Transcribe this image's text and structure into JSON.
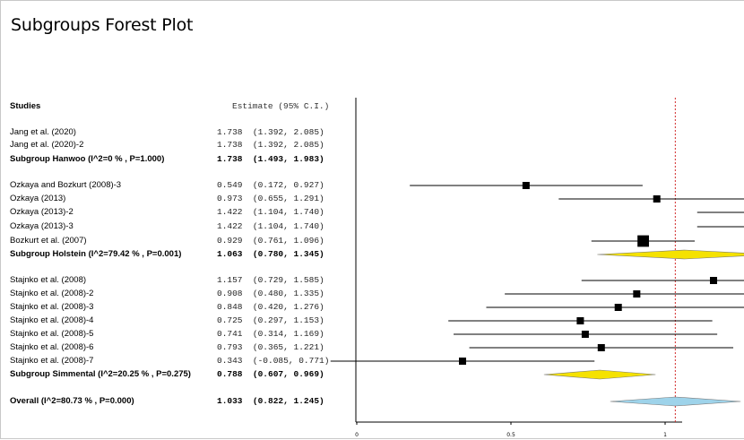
{
  "title": "Subgroups Forest Plot",
  "table_header": {
    "studies": "Studies",
    "estimate": "Estimate (95% C.I.)"
  },
  "rows": [
    {
      "label": "Jang et al. (2020)",
      "estimate_text": "1.738  (1.392, 2.085)",
      "est": 1.738,
      "lo": 1.392,
      "hi": 2.085,
      "kind": "study",
      "weight": 1
    },
    {
      "label": "Jang et al. (2020)-2",
      "estimate_text": "1.738  (1.392, 2.085)",
      "est": 1.738,
      "lo": 1.392,
      "hi": 2.085,
      "kind": "study",
      "weight": 1
    },
    {
      "label": "Subgroup Hanwoo (I^2=0 % , P=1.000)",
      "estimate_text": "1.738  (1.493, 1.983)",
      "est": 1.738,
      "lo": 1.493,
      "hi": 1.983,
      "kind": "subgroup"
    },
    {
      "label": "Ozkaya and Bozkurt (2008)-3",
      "estimate_text": "0.549  (0.172, 0.927)",
      "est": 0.549,
      "lo": 0.172,
      "hi": 0.927,
      "kind": "study",
      "weight": 1
    },
    {
      "label": "Ozkaya (2013)",
      "estimate_text": "0.973  (0.655, 1.291)",
      "est": 0.973,
      "lo": 0.655,
      "hi": 1.291,
      "kind": "study",
      "weight": 1
    },
    {
      "label": "Ozkaya (2013)-2",
      "estimate_text": "1.422  (1.104, 1.740)",
      "est": 1.422,
      "lo": 1.104,
      "hi": 1.74,
      "kind": "study",
      "weight": 1
    },
    {
      "label": "Ozkaya (2013)-3",
      "estimate_text": "1.422  (1.104, 1.740)",
      "est": 1.422,
      "lo": 1.104,
      "hi": 1.74,
      "kind": "study",
      "weight": 1
    },
    {
      "label": "Bozkurt et al. (2007)",
      "estimate_text": "0.929  (0.761, 1.096)",
      "est": 0.929,
      "lo": 0.761,
      "hi": 1.096,
      "kind": "study",
      "weight": 1.6
    },
    {
      "label": "Subgroup Holstein (I^2=79.42 % , P=0.001)",
      "estimate_text": "1.063  (0.780, 1.345)",
      "est": 1.063,
      "lo": 0.78,
      "hi": 1.345,
      "kind": "subgroup"
    },
    {
      "label": "Stajnko et al. (2008)",
      "estimate_text": "1.157  (0.729, 1.585)",
      "est": 1.157,
      "lo": 0.729,
      "hi": 1.585,
      "kind": "study",
      "weight": 1
    },
    {
      "label": "Stajnko et al. (2008)-2",
      "estimate_text": "0.908  (0.480, 1.335)",
      "est": 0.908,
      "lo": 0.48,
      "hi": 1.335,
      "kind": "study",
      "weight": 1
    },
    {
      "label": "Stajnko et al. (2008)-3",
      "estimate_text": "0.848  (0.420, 1.276)",
      "est": 0.848,
      "lo": 0.42,
      "hi": 1.276,
      "kind": "study",
      "weight": 1
    },
    {
      "label": "Stajnko et al. (2008)-4",
      "estimate_text": "0.725  (0.297, 1.153)",
      "est": 0.725,
      "lo": 0.297,
      "hi": 1.153,
      "kind": "study",
      "weight": 1
    },
    {
      "label": "Stajnko et al. (2008)-5",
      "estimate_text": "0.741  (0.314, 1.169)",
      "est": 0.741,
      "lo": 0.314,
      "hi": 1.169,
      "kind": "study",
      "weight": 1
    },
    {
      "label": "Stajnko et al. (2008)-6",
      "estimate_text": "0.793  (0.365, 1.221)",
      "est": 0.793,
      "lo": 0.365,
      "hi": 1.221,
      "kind": "study",
      "weight": 1
    },
    {
      "label": "Stajnko et al. (2008)-7",
      "estimate_text": "0.343  (-0.085, 0.771)",
      "est": 0.343,
      "lo": -0.085,
      "hi": 0.771,
      "kind": "study",
      "weight": 1
    },
    {
      "label": "Subgroup Simmental (I^2=20.25 % , P=0.275)",
      "estimate_text": "0.788  (0.607, 0.969)",
      "est": 0.788,
      "lo": 0.607,
      "hi": 0.969,
      "kind": "subgroup"
    },
    {
      "label": "Overall (I^2=80.73 % , P=0.000)",
      "estimate_text": "1.033  (0.822, 1.245)",
      "est": 1.033,
      "lo": 0.822,
      "hi": 1.245,
      "kind": "overall"
    }
  ],
  "chart_data": {
    "type": "forest",
    "title": "Subgroups Forest Plot",
    "xlim": [
      0,
      2
    ],
    "xticks": [
      "0",
      "0.5",
      "1",
      "1.5",
      "2"
    ],
    "reference_line": 1.033,
    "colors": {
      "subgroup_diamond": "#f5e200",
      "overall_diamond": "#9ed3ea",
      "reference_line": "#d22a2a",
      "marker": "#000000"
    }
  }
}
